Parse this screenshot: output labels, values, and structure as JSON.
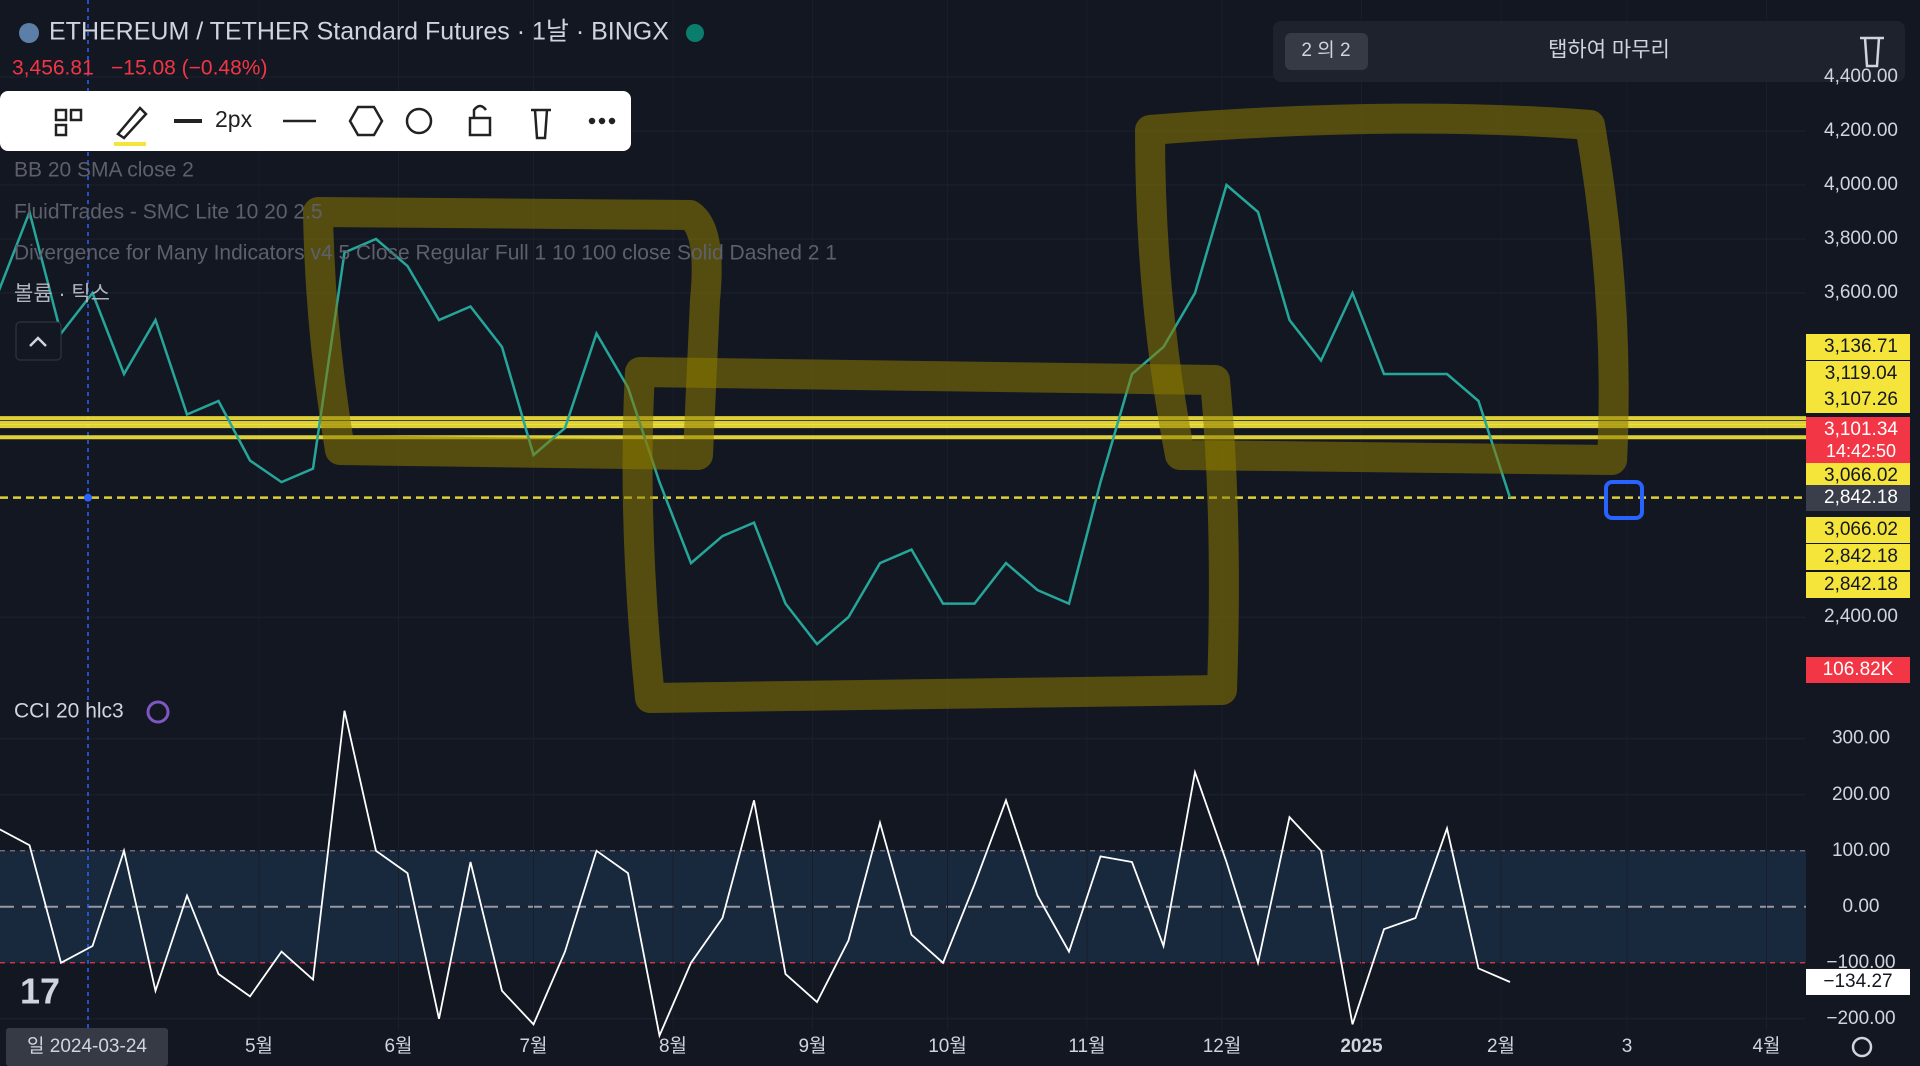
{
  "header": {
    "symbol": "ETHEREUM / TETHER Standard Futures · 1날 · BINGX",
    "price": "3,456.81",
    "change": "−15.08 (−0.48%)"
  },
  "toolbar": {
    "width_label": "2px"
  },
  "indicators": [
    "BB 20 SMA close 2",
    "FluidTrades - SMC Lite 10 20 2.5",
    "Divergence for Many Indicators v4 5 Close Regular Full 1 10 100 close Solid Dashed 2 1",
    "볼륨 · 틱스"
  ],
  "notification": {
    "counter": "2 의 2",
    "action": "탭하여 마무리"
  },
  "time_axis": {
    "crosshair": {
      "value": "2024-03-24",
      "label": "일 2024-03-24"
    },
    "ticks": [
      {
        "value": "2024-05-01",
        "label": "5월"
      },
      {
        "value": "2024-06-01",
        "label": "6월"
      },
      {
        "value": "2024-07-01",
        "label": "7월"
      },
      {
        "value": "2024-08-01",
        "label": "8월"
      },
      {
        "value": "2024-09-01",
        "label": "9월"
      },
      {
        "value": "2024-10-01",
        "label": "10월"
      },
      {
        "value": "2024-11-01",
        "label": "11월"
      },
      {
        "value": "2024-12-01",
        "label": "12월"
      },
      {
        "value": "2025-01-01",
        "label": "2025"
      },
      {
        "value": "2025-02-01",
        "label": "2월"
      },
      {
        "value": "2025-03-01",
        "label": "3"
      },
      {
        "value": "2025-04-01",
        "label": "4월"
      }
    ]
  },
  "chart_data": [
    {
      "type": "line",
      "color": "#26a69a",
      "x": [
        "2024-03-04",
        "2024-03-11",
        "2024-03-18",
        "2024-03-25",
        "2024-04-01",
        "2024-04-08",
        "2024-04-15",
        "2024-04-22",
        "2024-04-29",
        "2024-05-06",
        "2024-05-13",
        "2024-05-20",
        "2024-05-27",
        "2024-06-03",
        "2024-06-10",
        "2024-06-17",
        "2024-06-24",
        "2024-07-01",
        "2024-07-08",
        "2024-07-15",
        "2024-07-22",
        "2024-07-29",
        "2024-08-05",
        "2024-08-12",
        "2024-08-19",
        "2024-08-26",
        "2024-09-02",
        "2024-09-09",
        "2024-09-16",
        "2024-09-23",
        "2024-09-30",
        "2024-10-07",
        "2024-10-14",
        "2024-10-21",
        "2024-10-28",
        "2024-11-04",
        "2024-11-11",
        "2024-11-18",
        "2024-11-25",
        "2024-12-02",
        "2024-12-09",
        "2024-12-16",
        "2024-12-23",
        "2024-12-30",
        "2025-01-06",
        "2025-01-13",
        "2025-01-20",
        "2025-01-27",
        "2025-02-03"
      ],
      "values": [
        3600,
        3900,
        3450,
        3600,
        3300,
        3500,
        3150,
        3200,
        2980,
        2900,
        2950,
        3750,
        3800,
        3700,
        3500,
        3550,
        3400,
        3000,
        3100,
        3450,
        3250,
        2900,
        2600,
        2700,
        2750,
        2450,
        2300,
        2400,
        2600,
        2650,
        2450,
        2450,
        2600,
        2500,
        2450,
        2900,
        3300,
        3400,
        3600,
        4000,
        3900,
        3500,
        3350,
        3600,
        3300,
        3300,
        3300,
        3200,
        2842
      ],
      "ylim": [
        2130,
        4685
      ],
      "yticks": [
        {
          "value": 4400,
          "label": "4,400.00"
        },
        {
          "value": 4200,
          "label": "4,200.00"
        },
        {
          "value": 4000,
          "label": "4,000.00"
        },
        {
          "value": 3800,
          "label": "3,800.00"
        },
        {
          "value": 3600,
          "label": "3,600.00"
        },
        {
          "value": 2400,
          "label": "2,400.00"
        }
      ],
      "axis_labels": [
        {
          "value": 3136.71,
          "label": "3,136.71",
          "color": "#f5e53b",
          "line": "solid"
        },
        {
          "value": 3119.04,
          "label": "3,119.04",
          "color": "#f5e53b",
          "line": "solid"
        },
        {
          "value": 3107.26,
          "label": "3,107.26",
          "color": "#f5e53b",
          "line": "solid"
        },
        {
          "value": 3101.34,
          "label": "3,101.34",
          "color": "#f23645",
          "line": "none",
          "countdown": "14:42:50"
        },
        {
          "value": 3066.02,
          "label": "3,066.02",
          "color": "#f5e53b",
          "line": "solid"
        },
        {
          "value": 2842.18,
          "label": "2,842.18",
          "color": "#3a3e4a",
          "line": "dashed"
        },
        {
          "value": 3066.02,
          "label": "3,066.02",
          "color": "#f5e53b",
          "line": "none"
        },
        {
          "value": 2842.18,
          "label": "2,842.18",
          "color": "#f5e53b",
          "line": "none"
        },
        {
          "value": 2842.18,
          "label": "2,842.18",
          "color": "#f5e53b",
          "line": "none"
        }
      ],
      "volume_label": {
        "value": 106820,
        "label": "106.82K"
      }
    },
    {
      "type": "line",
      "title": "CCI 20 hlc3",
      "color": "#ffffff",
      "x": [
        "2024-03-04",
        "2024-03-11",
        "2024-03-18",
        "2024-03-25",
        "2024-04-01",
        "2024-04-08",
        "2024-04-15",
        "2024-04-22",
        "2024-04-29",
        "2024-05-06",
        "2024-05-13",
        "2024-05-20",
        "2024-05-27",
        "2024-06-03",
        "2024-06-10",
        "2024-06-17",
        "2024-06-24",
        "2024-07-01",
        "2024-07-08",
        "2024-07-15",
        "2024-07-22",
        "2024-07-29",
        "2024-08-05",
        "2024-08-12",
        "2024-08-19",
        "2024-08-26",
        "2024-09-02",
        "2024-09-09",
        "2024-09-16",
        "2024-09-23",
        "2024-09-30",
        "2024-10-07",
        "2024-10-14",
        "2024-10-21",
        "2024-10-28",
        "2024-11-04",
        "2024-11-11",
        "2024-11-18",
        "2024-11-25",
        "2024-12-02",
        "2024-12-09",
        "2024-12-16",
        "2024-12-23",
        "2024-12-30",
        "2025-01-06",
        "2025-01-13",
        "2025-01-20",
        "2025-01-27",
        "2025-02-03"
      ],
      "values": [
        140,
        110,
        -100,
        -70,
        100,
        -150,
        20,
        -120,
        -160,
        -80,
        -130,
        350,
        100,
        60,
        -200,
        80,
        -150,
        -210,
        -80,
        100,
        60,
        -230,
        -100,
        -20,
        190,
        -120,
        -170,
        -60,
        150,
        -50,
        -100,
        40,
        190,
        20,
        -80,
        90,
        80,
        -70,
        240,
        80,
        -100,
        160,
        100,
        -210,
        -40,
        -20,
        140,
        -110,
        -134.27
      ],
      "ylim": [
        -220,
        387
      ],
      "yticks": [
        {
          "value": 300,
          "label": "300.00"
        },
        {
          "value": 200,
          "label": "200.00"
        },
        {
          "value": 100,
          "label": "100.00"
        },
        {
          "value": 0,
          "label": "0.00"
        },
        {
          "value": -100,
          "label": "−100.00"
        },
        {
          "value": -200,
          "label": "−200.00"
        }
      ],
      "value_labels": {
        "index": 48,
        "label": "−134.27"
      }
    }
  ]
}
